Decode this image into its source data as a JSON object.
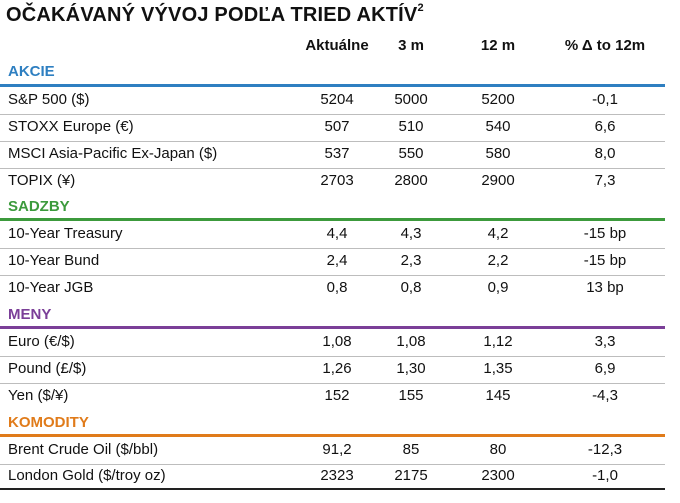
{
  "title": "OČAKÁVANÝ VÝVOJ PODĽA TRIED AKTÍV",
  "title_footnote": "2",
  "headers": {
    "current": "Aktuálne",
    "m3": "3 m",
    "m12": "12 m",
    "change": "% Δ to 12m"
  },
  "colors": {
    "akcie": "#2e7fc1",
    "sadzby": "#3c9a3c",
    "meny": "#7b3f98",
    "komodity": "#e07b1a"
  },
  "sections": [
    {
      "name": "AKCIE",
      "rows": [
        {
          "name": "S&P 500 ($)",
          "current": "5204",
          "m3": "5000",
          "m12": "5200",
          "change": "-0,1"
        },
        {
          "name": "STOXX Europe (€)",
          "current": "507",
          "m3": "510",
          "m12": "540",
          "change": "6,6"
        },
        {
          "name": "MSCI Asia-Pacific Ex-Japan ($)",
          "current": "537",
          "m3": "550",
          "m12": "580",
          "change": "8,0"
        },
        {
          "name": "TOPIX (¥)",
          "current": "2703",
          "m3": "2800",
          "m12": "2900",
          "change": "7,3"
        }
      ]
    },
    {
      "name": "SADZBY",
      "rows": [
        {
          "name": "10-Year Treasury",
          "current": "4,4",
          "m3": "4,3",
          "m12": "4,2",
          "change": "-15 bp"
        },
        {
          "name": "10-Year Bund",
          "current": "2,4",
          "m3": "2,3",
          "m12": "2,2",
          "change": "-15 bp"
        },
        {
          "name": "10-Year JGB",
          "current": "0,8",
          "m3": "0,8",
          "m12": "0,9",
          "change": "13 bp"
        }
      ]
    },
    {
      "name": "MENY",
      "rows": [
        {
          "name": "Euro (€/$)",
          "current": "1,08",
          "m3": "1,08",
          "m12": "1,12",
          "change": "3,3"
        },
        {
          "name": "Pound (£/$)",
          "current": "1,26",
          "m3": "1,30",
          "m12": "1,35",
          "change": "6,9"
        },
        {
          "name": "Yen ($/¥)",
          "current": "152",
          "m3": "155",
          "m12": "145",
          "change": "-4,3"
        }
      ]
    },
    {
      "name": "KOMODITY",
      "rows": [
        {
          "name": "Brent Crude Oil ($/bbl)",
          "current": "91,2",
          "m3": "85",
          "m12": "80",
          "change": "-12,3"
        },
        {
          "name": "London Gold ($/troy oz)",
          "current": "2323",
          "m3": "2175",
          "m12": "2300",
          "change": "-1,0"
        }
      ]
    }
  ]
}
